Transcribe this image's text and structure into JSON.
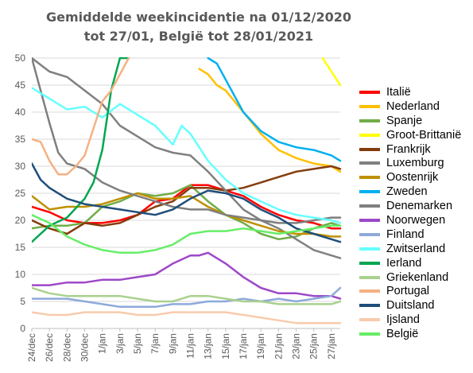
{
  "chart_data": {
    "type": "line",
    "title_lines": [
      "Gemiddelde weekincidentie  na 01/12/2020",
      "tot 27/01, België tot 28/01/2021"
    ],
    "x_ticks": [
      "24/dec",
      "26/dec",
      "28/dec",
      "30/dec",
      "1/jan",
      "3/jan",
      "5/jan",
      "7/jan",
      "9/jan",
      "11/jan",
      "13/jan",
      "15/jan",
      "17/jan",
      "19/jan",
      "21/jan",
      "23/jan",
      "25/jan",
      "27/jan"
    ],
    "x_count": 36,
    "ylim": [
      0,
      50
    ],
    "y_ticks": [
      0,
      5,
      10,
      15,
      20,
      25,
      30,
      35,
      40,
      45,
      50
    ],
    "grid": true,
    "legend_position": "right",
    "series": [
      {
        "name": "Italië",
        "color": "#FF0000",
        "x": [
          0,
          2,
          4,
          6,
          8,
          10,
          12,
          14,
          16,
          18,
          20,
          22,
          24,
          26,
          28,
          30,
          32,
          34,
          35
        ],
        "y": [
          22.5,
          21.5,
          20,
          19.5,
          19.5,
          20,
          21,
          23.5,
          24,
          26.5,
          26.5,
          25.5,
          24.5,
          22.5,
          21,
          20,
          19.5,
          18.5,
          18.5
        ]
      },
      {
        "name": "Nederland",
        "color": "#FFC000",
        "x": [
          19,
          20,
          21,
          22,
          23,
          24,
          26,
          28,
          30,
          32,
          34,
          35
        ],
        "y": [
          48,
          47,
          45,
          44,
          42,
          40,
          36,
          33,
          31.5,
          30.5,
          30,
          29
        ]
      },
      {
        "name": "Spanje",
        "color": "#70AD47",
        "x": [
          0,
          2,
          4,
          6,
          8,
          10,
          12,
          14,
          16,
          18,
          20,
          22,
          24,
          26,
          28,
          30,
          32,
          34,
          35
        ],
        "y": [
          18.5,
          19,
          19,
          19.5,
          22.5,
          23.5,
          25,
          24.5,
          25,
          26.5,
          23.5,
          21,
          19.5,
          17.5,
          16.5,
          17,
          18.5,
          19.5,
          19
        ]
      },
      {
        "name": "Groot-Brittanië",
        "color": "#FFFF00",
        "x": [
          33,
          34,
          35
        ],
        "y": [
          50,
          47.5,
          45
        ]
      },
      {
        "name": "Frankrijk",
        "color": "#843C0C",
        "x": [
          0,
          2,
          4,
          6,
          8,
          10,
          12,
          14,
          16,
          18,
          20,
          22,
          24,
          26,
          28,
          30,
          32,
          34,
          35
        ],
        "y": [
          20,
          18.5,
          17.5,
          19.5,
          19,
          19.5,
          21,
          22.5,
          23.5,
          26,
          26,
          25.5,
          26,
          27,
          28,
          29,
          29.5,
          30,
          29.5
        ]
      },
      {
        "name": "Luxemburg",
        "color": "#808080",
        "x": [
          0,
          2,
          4,
          6,
          8,
          10,
          12,
          14,
          16,
          18,
          20,
          22,
          24,
          26,
          28,
          30,
          32,
          34,
          35
        ],
        "y": [
          50,
          47.5,
          46.5,
          44,
          41.5,
          37.5,
          35.5,
          33.5,
          32.5,
          32,
          29,
          25.5,
          22,
          20,
          18.5,
          16.5,
          14.5,
          13.5,
          13
        ]
      },
      {
        "name": "Oostenrijk",
        "color": "#BF9000",
        "x": [
          0,
          2,
          4,
          6,
          8,
          10,
          12,
          14,
          16,
          18,
          20,
          22,
          24,
          26,
          28,
          30,
          32,
          34,
          35
        ],
        "y": [
          24.5,
          22,
          22.5,
          22.5,
          23,
          24,
          25,
          24,
          24,
          24.5,
          22.5,
          21,
          20,
          19,
          18,
          17.5,
          17.5,
          17,
          17
        ]
      },
      {
        "name": "Zweden",
        "color": "#00B0F0",
        "x": [
          20,
          21,
          22,
          24,
          26,
          28,
          30,
          32,
          34,
          35
        ],
        "y": [
          50,
          49,
          46,
          40,
          36.5,
          34.5,
          33.5,
          33,
          32,
          31
        ]
      },
      {
        "name": "Denemarken",
        "color": "#7F7F7F",
        "x": [
          0,
          2,
          3,
          4,
          6,
          8,
          10,
          12,
          14,
          16,
          18,
          20,
          22,
          24,
          26,
          28,
          30,
          32,
          34,
          35
        ],
        "y": [
          50,
          38,
          32.5,
          30.5,
          29.5,
          27,
          25.5,
          24.5,
          23.5,
          22.5,
          22,
          22,
          21,
          20.5,
          20,
          19.5,
          19.5,
          20,
          20.5,
          20.5
        ]
      },
      {
        "name": "Noorwegen",
        "color": "#9E48C8",
        "x": [
          0,
          2,
          4,
          6,
          8,
          10,
          12,
          14,
          16,
          18,
          19,
          20,
          22,
          24,
          26,
          28,
          30,
          32,
          34,
          35
        ],
        "y": [
          8,
          8,
          8.5,
          8.5,
          9,
          9,
          9.5,
          10,
          12,
          13.5,
          13.5,
          14,
          12,
          9.5,
          7.5,
          6.5,
          6.5,
          6,
          6,
          5.5
        ]
      },
      {
        "name": "Finland",
        "color": "#8EA9DB",
        "x": [
          0,
          2,
          4,
          6,
          8,
          10,
          12,
          14,
          16,
          18,
          20,
          22,
          24,
          26,
          28,
          30,
          32,
          34,
          35
        ],
        "y": [
          5.5,
          5.5,
          5.5,
          5,
          4.5,
          4,
          4,
          4,
          4.5,
          4.5,
          5,
          5,
          5.5,
          5,
          5.5,
          5,
          5.5,
          6,
          7.5
        ]
      },
      {
        "name": "Zwitserland",
        "color": "#66FFFF",
        "x": [
          0,
          2,
          4,
          6,
          8,
          10,
          12,
          14,
          16,
          17,
          18,
          20,
          22,
          24,
          26,
          28,
          30,
          32,
          34,
          35
        ],
        "y": [
          44.5,
          42.5,
          40.5,
          41,
          39,
          41.5,
          39.5,
          37.5,
          34,
          37.5,
          36,
          31,
          27.5,
          25,
          23.5,
          22,
          21,
          20.5,
          20,
          19.5
        ]
      },
      {
        "name": "Ierland",
        "color": "#00A650",
        "x": [
          0,
          2,
          4,
          6,
          7,
          8,
          9,
          10,
          11
        ],
        "y": [
          16,
          19,
          20.5,
          24,
          27,
          33,
          44,
          50,
          50
        ]
      },
      {
        "name": "Griekenland",
        "color": "#A9D18E",
        "x": [
          0,
          2,
          4,
          6,
          8,
          10,
          12,
          14,
          16,
          18,
          20,
          22,
          24,
          26,
          28,
          30,
          32,
          34,
          35
        ],
        "y": [
          7.5,
          6.5,
          6,
          6,
          6,
          6,
          5.5,
          5,
          5,
          6,
          6,
          5.5,
          5,
          5,
          4.5,
          4.5,
          4.5,
          4.5,
          5
        ]
      },
      {
        "name": "Portugal",
        "color": "#F4B183",
        "x": [
          0,
          1,
          2,
          3,
          4,
          5,
          6,
          7,
          8,
          9,
          10,
          11
        ],
        "y": [
          35,
          34.5,
          31,
          28.5,
          28.5,
          30,
          32,
          37,
          42,
          44,
          47,
          50
        ]
      },
      {
        "name": "Duitsland",
        "color": "#1F4E79",
        "x": [
          0,
          1,
          2,
          4,
          6,
          8,
          10,
          12,
          14,
          16,
          18,
          20,
          22,
          24,
          26,
          28,
          30,
          32,
          34,
          35
        ],
        "y": [
          30.5,
          27.5,
          26,
          24,
          23,
          22.5,
          22,
          21.5,
          21,
          22,
          24,
          25.5,
          25,
          24,
          22,
          20.5,
          18.5,
          17.5,
          16.5,
          16
        ]
      },
      {
        "name": "Ijsland",
        "color": "#F8CBAD",
        "x": [
          0,
          2,
          4,
          6,
          8,
          10,
          12,
          14,
          16,
          18,
          20,
          22,
          24,
          26,
          28,
          30,
          32,
          34,
          35
        ],
        "y": [
          3,
          2.5,
          2.5,
          3,
          3,
          3,
          2.5,
          2.5,
          3,
          3,
          3,
          3,
          2.5,
          2,
          1.5,
          1,
          1,
          1,
          1
        ]
      },
      {
        "name": "België",
        "color": "#66EE66",
        "x": [
          0,
          2,
          4,
          6,
          8,
          10,
          12,
          14,
          16,
          18,
          20,
          22,
          24,
          26,
          28,
          30,
          32,
          34,
          35
        ],
        "y": [
          21,
          19.5,
          17,
          15.5,
          14.5,
          14,
          14,
          14.5,
          15.5,
          17.5,
          18,
          18,
          18.5,
          18,
          17.5,
          18,
          18.5,
          19,
          19
        ]
      }
    ]
  }
}
